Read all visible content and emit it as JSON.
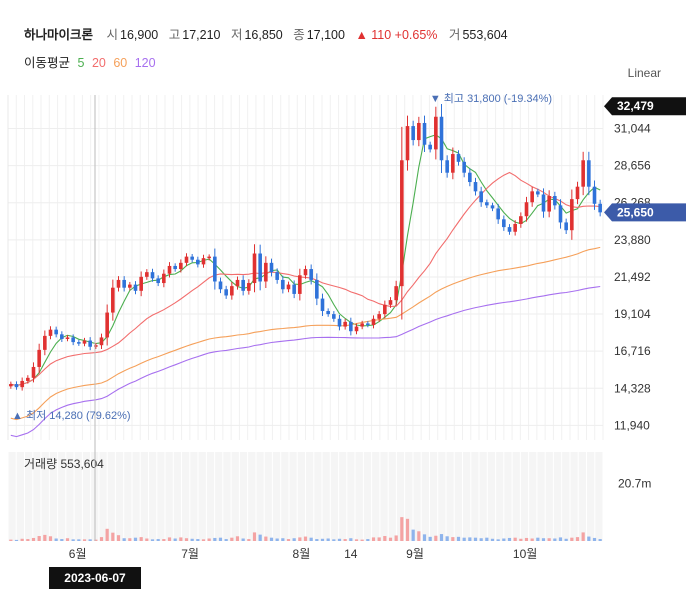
{
  "header": {
    "stock_name": "하나마이크론",
    "open_label": "시",
    "open": "16,900",
    "high_label": "고",
    "high": "17,210",
    "low_label": "저",
    "low": "16,850",
    "close_label": "종",
    "close": "17,100",
    "change": "▲ 110 +0.65%",
    "volume_label": "거",
    "volume": "553,604"
  },
  "moving_average": {
    "label": "이동평균",
    "periods": [
      "5",
      "20",
      "60",
      "120"
    ],
    "colors": [
      "#4caf50",
      "#f26d6d",
      "#f5a05a",
      "#a770ef"
    ]
  },
  "scale_mode": "Linear",
  "colors": {
    "up": "#e03131",
    "down": "#2f72d9",
    "vol_up": "#f4a3a3",
    "vol_down": "#8fb4ec",
    "current_badge": "#3c5ba9"
  },
  "chart_data": {
    "type": "candlestick",
    "price_axis": {
      "ticks": [
        "31,044",
        "28,656",
        "26,268",
        "23,880",
        "21,492",
        "19,104",
        "16,716",
        "14,328",
        "11,940"
      ],
      "range": [
        11000,
        33200
      ]
    },
    "price_badges": {
      "high_marker": "32,479",
      "current": "25,650"
    },
    "annotations": {
      "max": "▼ 최고 31,800 (-19.34%)",
      "min": "▲ 최저 14,280 (79.62%)"
    },
    "x_labels": [
      "6월",
      "7월",
      "8월",
      "14",
      "9월",
      "10월"
    ],
    "crosshair_date": "2023-06-07",
    "volume_panel": {
      "title": "거래량",
      "value": "553,604",
      "axis_tick": "20.7m"
    },
    "daily_closes": [
      14600,
      14400,
      14800,
      15000,
      15700,
      16800,
      17700,
      18100,
      17800,
      17500,
      17600,
      17300,
      17200,
      17400,
      17000,
      17100,
      17600,
      19200,
      20800,
      21300,
      20800,
      21000,
      20600,
      21500,
      21800,
      21400,
      21100,
      21700,
      22200,
      22000,
      22400,
      22800,
      22600,
      22300,
      22700,
      22800,
      21200,
      20700,
      20300,
      20900,
      21300,
      20600,
      21100,
      23000,
      21200,
      22400,
      21800,
      21300,
      20700,
      21000,
      20400,
      21600,
      22000,
      21300,
      20100,
      19300,
      19100,
      18800,
      18300,
      18600,
      18000,
      18300,
      18500,
      18400,
      18800,
      19100,
      19700,
      20000,
      20900,
      29000,
      31200,
      30300,
      31400,
      30000,
      29700,
      31800,
      29000,
      28200,
      29400,
      28900,
      28200,
      27600,
      27000,
      26300,
      26100,
      25900,
      25200,
      24700,
      24400,
      24900,
      25400,
      26300,
      27000,
      26800,
      25700,
      26700,
      26100,
      25000,
      24500,
      26500,
      27300,
      29000,
      27300,
      26200,
      25650
    ],
    "volumes_m": [
      0.5,
      0.4,
      0.8,
      0.7,
      1.1,
      1.8,
      2.2,
      1.7,
      0.9,
      0.7,
      1.0,
      0.6,
      0.6,
      0.6,
      0.6,
      0.5,
      1.4,
      4.4,
      3.0,
      2.1,
      1.0,
      1.0,
      1.2,
      1.4,
      0.9,
      0.6,
      0.7,
      0.7,
      1.3,
      0.9,
      1.3,
      1.0,
      0.8,
      0.7,
      0.6,
      0.9,
      1.1,
      1.2,
      0.7,
      1.2,
      1.7,
      0.9,
      0.7,
      3.1,
      2.3,
      1.6,
      1.2,
      0.9,
      1.0,
      0.7,
      1.0,
      1.3,
      1.6,
      1.2,
      0.7,
      0.8,
      0.9,
      0.6,
      0.8,
      0.7,
      1.0,
      0.6,
      0.5,
      0.7,
      1.3,
      1.3,
      1.8,
      1.2,
      2.0,
      8.6,
      8.0,
      4.1,
      3.5,
      2.4,
      1.5,
      1.9,
      2.5,
      1.7,
      1.4,
      1.5,
      1.2,
      1.3,
      1.2,
      1.0,
      1.2,
      0.8,
      0.6,
      0.9,
      1.1,
      1.2,
      0.8,
      1.1,
      0.9,
      1.2,
      1.0,
      1.0,
      0.9,
      1.3,
      0.8,
      1.2,
      1.4,
      3.1,
      1.6,
      1.1,
      0.7
    ]
  }
}
